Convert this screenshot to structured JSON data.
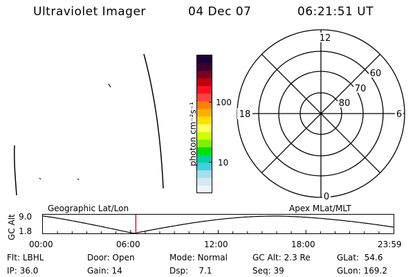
{
  "header": {
    "title": "Ultraviolet Imager",
    "date": "04 Dec 07",
    "time": "06:21:51 UT"
  },
  "colorbar": {
    "label": "photon cm⁻²s⁻¹",
    "ticks": [
      "100",
      "10"
    ]
  },
  "polar_plot": {
    "mlt_labels": {
      "top": "12",
      "left": "18",
      "right": "6",
      "bottom": "0"
    },
    "lat_labels": [
      "60",
      "70",
      "80"
    ]
  },
  "timeline": {
    "left_caption": "Geographic Lat/Lon",
    "right_caption": "Apex MLat/MLT",
    "axis_label": "GC Alt",
    "y_ticks": [
      "9.0",
      "1.8"
    ],
    "x_ticks": [
      "00:00",
      "06:00",
      "12:00",
      "18:00",
      "23:59"
    ],
    "current_time_marker": "06:21:51"
  },
  "info": {
    "row1": [
      {
        "label": "Flt:",
        "value": "LBHL"
      },
      {
        "label": "Door:",
        "value": "Open"
      },
      {
        "label": "Mode:",
        "value": "Normal"
      },
      {
        "label": "GC Alt:",
        "value": "2.3 Re"
      },
      {
        "label": "GLat:",
        "value": "54.6"
      }
    ],
    "row2": [
      {
        "label": "IP:",
        "value": "36.0"
      },
      {
        "label": "Gain:",
        "value": "14"
      },
      {
        "label": "Dsp:",
        "value": "7.1"
      },
      {
        "label": "Seq:",
        "value": "39"
      },
      {
        "label": "GLon:",
        "value": "169.2"
      }
    ]
  },
  "colors": {
    "marker": "#cc0000",
    "line": "#000000"
  }
}
